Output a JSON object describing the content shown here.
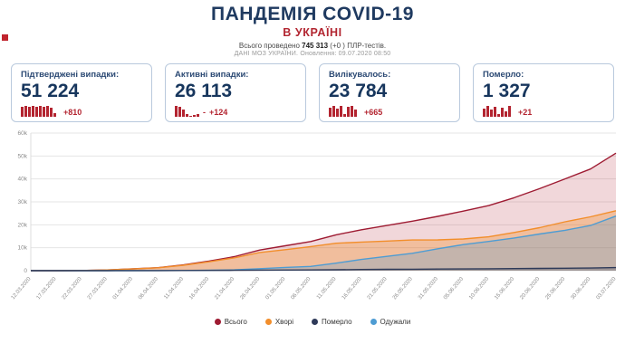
{
  "colors": {
    "title_navy": "#1f3a60",
    "subtitle_red": "#b22631",
    "card_value_navy": "#17365d",
    "delta_red": "#b32430",
    "card_border": "#b9c9dd"
  },
  "header": {
    "title": "ПАНДЕМІЯ COVID-19",
    "subtitle": "В УКРАЇНІ",
    "tests_prefix": "Всього проведено",
    "tests_total": "745 313",
    "tests_delta": "(+0 )",
    "tests_suffix": "ПЛР-тестів.",
    "source_line": "ДАНІ МОЗ УКРАЇНИ. Оновлення: 09.07.2020 08:50"
  },
  "cards": [
    {
      "label": "Підтверджені випадки:",
      "value": "51 224",
      "delta_prefix": "",
      "delta": "+810",
      "spark": [
        11,
        12,
        11,
        12,
        11,
        12,
        11,
        12,
        10,
        4
      ]
    },
    {
      "label": "Активні випадки:",
      "value": "26 113",
      "delta_prefix": "-",
      "delta": "+124",
      "spark": [
        12,
        11,
        8,
        3,
        1,
        2,
        3
      ]
    },
    {
      "label": "Вилікувалось:",
      "value": "23 784",
      "delta_prefix": "",
      "delta": "+665",
      "spark": [
        10,
        12,
        9,
        12,
        3,
        11,
        12,
        8
      ]
    },
    {
      "label": "Померло:",
      "value": "1 327",
      "delta_prefix": "",
      "delta": "+21",
      "spark": [
        9,
        12,
        8,
        11,
        3,
        10,
        6,
        12
      ]
    }
  ],
  "chart_data": {
    "type": "area",
    "title": "",
    "xlabel": "",
    "ylabel": "",
    "ylim": [
      0,
      60000
    ],
    "yticks": [
      "0",
      "10k",
      "20k",
      "30k",
      "40k",
      "50k",
      "60k"
    ],
    "grid": true,
    "legend_position": "bottom",
    "x": [
      "12.03.2020",
      "17.03.2020",
      "22.03.2020",
      "27.03.2020",
      "01.04.2020",
      "06.04.2020",
      "11.04.2020",
      "16.04.2020",
      "21.04.2020",
      "26.04.2020",
      "01.05.2020",
      "06.05.2020",
      "11.05.2020",
      "16.05.2020",
      "21.05.2020",
      "26.05.2020",
      "31.05.2020",
      "05.06.2020",
      "10.06.2020",
      "15.06.2020",
      "20.06.2020",
      "25.06.2020",
      "30.06.2020",
      "03.07.2020"
    ],
    "series": [
      {
        "name": "Всього",
        "color": "#9e1b32",
        "fill": "rgba(178,36,48,0.18)",
        "values": [
          3,
          14,
          73,
          310,
          794,
          1319,
          2511,
          4161,
          6125,
          9009,
          10861,
          12697,
          15648,
          17858,
          19706,
          21584,
          23672,
          25964,
          28381,
          31810,
          35755,
          40008,
          44334,
          51224
        ]
      },
      {
        "name": "Хворі",
        "color": "#f28e2b",
        "fill": "rgba(242,142,43,0.35)",
        "values": [
          3,
          12,
          69,
          300,
          761,
          1253,
          2359,
          3859,
          5597,
          7925,
          9176,
          10506,
          11952,
          12455,
          12900,
          13365,
          13426,
          13830,
          14779,
          16656,
          18767,
          21329,
          23496,
          26113
        ]
      },
      {
        "name": "Померло",
        "color": "#2e3a59",
        "fill": "rgba(46,58,89,0.25)",
        "values": [
          0,
          2,
          3,
          5,
          20,
          38,
          73,
          116,
          161,
          220,
          272,
          316,
          408,
          497,
          579,
          644,
          708,
          762,
          833,
          901,
          1002,
          1067,
          1159,
          1327
        ]
      },
      {
        "name": "Одужали",
        "color": "#4e9cd3",
        "fill": "rgba(78,156,211,0.28)",
        "values": [
          0,
          0,
          1,
          5,
          13,
          28,
          79,
          186,
          367,
          864,
          1413,
          1875,
          3288,
          4906,
          6227,
          7575,
          9538,
          11372,
          12769,
          14253,
          15986,
          17612,
          19679,
          23784
        ]
      }
    ]
  }
}
